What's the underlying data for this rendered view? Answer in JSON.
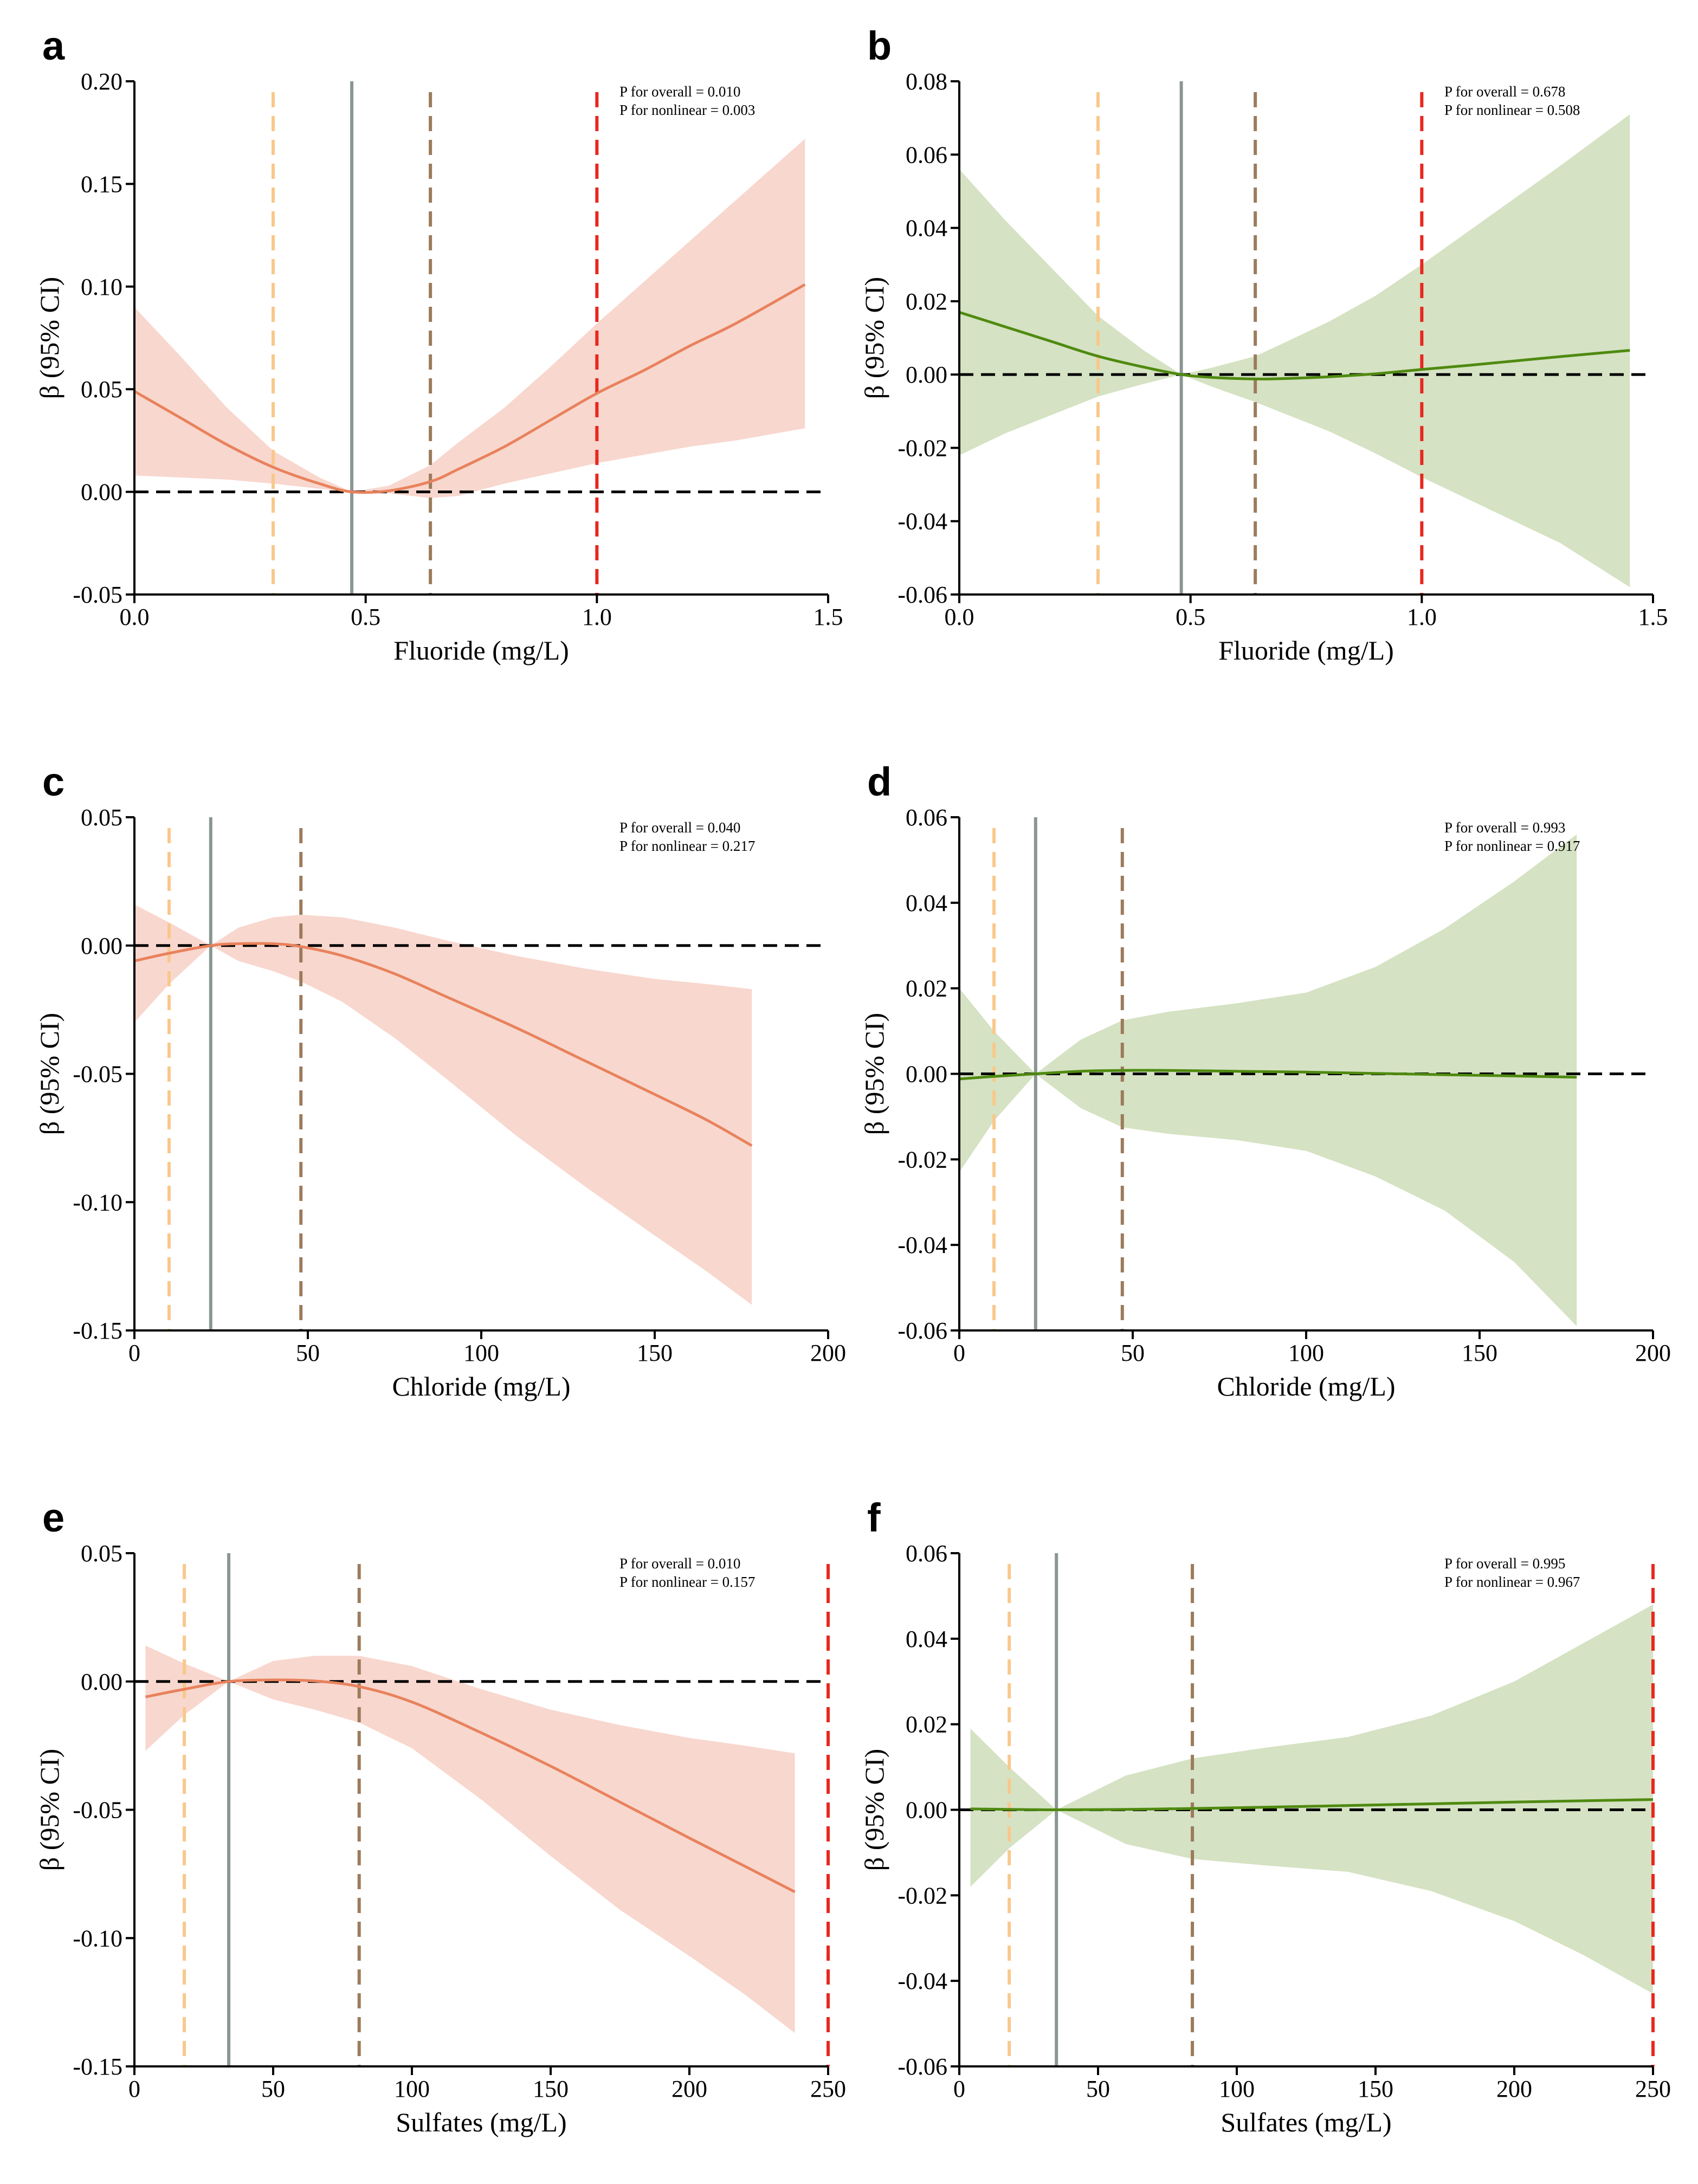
{
  "chart_data": [
    {
      "panel": "a",
      "type": "line",
      "color": "#E8825C",
      "band_color": "#F8D7CE",
      "xlabel": "Fluoride (mg/L)",
      "ylabel": "β (95% CI)",
      "xlim": [
        0,
        1.5
      ],
      "ylim": [
        -0.05,
        0.2
      ],
      "xticks": [
        0,
        0.5,
        1.0,
        1.5
      ],
      "xtick_labels": [
        "0.0",
        "0.5",
        "1.0",
        "1.5"
      ],
      "yticks": [
        -0.05,
        0,
        0.05,
        0.1,
        0.15,
        0.2
      ],
      "ytick_labels": [
        "-0.05",
        "0.00",
        "0.05",
        "0.10",
        "0.15",
        "0.20"
      ],
      "p_overall": "P for overall = 0.010",
      "p_nonlinear": "P for nonlinear = 0.003",
      "ref_x": 0.47,
      "vlines": [
        {
          "x": 0.3,
          "color": "#F9C88A"
        },
        {
          "x": 0.64,
          "color": "#9C7B5C"
        },
        {
          "x": 1.0,
          "color": "#E8281E"
        }
      ],
      "x": [
        0.0,
        0.1,
        0.2,
        0.3,
        0.4,
        0.47,
        0.55,
        0.64,
        0.7,
        0.8,
        0.9,
        1.0,
        1.1,
        1.2,
        1.3,
        1.45
      ],
      "y": [
        0.049,
        0.036,
        0.023,
        0.012,
        0.004,
        0.0,
        0.0005,
        0.005,
        0.011,
        0.022,
        0.035,
        0.048,
        0.059,
        0.071,
        0.082,
        0.101
      ],
      "lower": [
        0.008,
        0.007,
        0.006,
        0.004,
        0.0015,
        0.0,
        -0.0007,
        -0.003,
        -0.002,
        0.004,
        0.009,
        0.014,
        0.018,
        0.022,
        0.025,
        0.031
      ],
      "upper": [
        0.09,
        0.066,
        0.041,
        0.02,
        0.007,
        0.0,
        0.003,
        0.013,
        0.024,
        0.041,
        0.061,
        0.082,
        0.102,
        0.122,
        0.142,
        0.172
      ]
    },
    {
      "panel": "b",
      "type": "line",
      "color": "#4F8A10",
      "band_color": "#D5E2C3",
      "xlabel": "Fluoride (mg/L)",
      "ylabel": "β (95% CI)",
      "xlim": [
        0,
        1.5
      ],
      "ylim": [
        -0.06,
        0.08
      ],
      "xticks": [
        0,
        0.5,
        1.0,
        1.5
      ],
      "xtick_labels": [
        "0.0",
        "0.5",
        "1.0",
        "1.5"
      ],
      "yticks": [
        -0.06,
        -0.04,
        -0.02,
        0,
        0.02,
        0.04,
        0.06,
        0.08
      ],
      "ytick_labels": [
        "-0.06",
        "-0.04",
        "-0.02",
        "0.00",
        "0.02",
        "0.04",
        "0.06",
        "0.08"
      ],
      "p_overall": "P for overall = 0.678",
      "p_nonlinear": "P for nonlinear = 0.508",
      "ref_x": 0.48,
      "vlines": [
        {
          "x": 0.3,
          "color": "#F9C88A"
        },
        {
          "x": 0.64,
          "color": "#9C7B5C"
        },
        {
          "x": 1.0,
          "color": "#E8281E"
        }
      ],
      "x": [
        0.0,
        0.1,
        0.2,
        0.3,
        0.4,
        0.48,
        0.55,
        0.64,
        0.7,
        0.8,
        0.9,
        1.0,
        1.1,
        1.2,
        1.3,
        1.45
      ],
      "y": [
        0.017,
        0.013,
        0.009,
        0.005,
        0.002,
        0.0,
        -0.0008,
        -0.0012,
        -0.0011,
        -0.0006,
        0.0002,
        0.0014,
        0.0025,
        0.0037,
        0.0049,
        0.0066
      ],
      "lower": [
        -0.022,
        -0.016,
        -0.011,
        -0.006,
        -0.0025,
        0.0,
        -0.0035,
        -0.0075,
        -0.0105,
        -0.0155,
        -0.0215,
        -0.028,
        -0.034,
        -0.04,
        -0.046,
        -0.058
      ],
      "upper": [
        0.056,
        0.042,
        0.029,
        0.016,
        0.0065,
        0.0,
        0.002,
        0.005,
        0.0085,
        0.0145,
        0.0215,
        0.03,
        0.039,
        0.048,
        0.057,
        0.071
      ]
    },
    {
      "panel": "c",
      "type": "line",
      "color": "#E8825C",
      "band_color": "#F8D7CE",
      "xlabel": "Chloride (mg/L)",
      "ylabel": "β (95% CI)",
      "xlim": [
        0,
        200
      ],
      "ylim": [
        -0.15,
        0.05
      ],
      "xticks": [
        0,
        50,
        100,
        150,
        200
      ],
      "xtick_labels": [
        "0",
        "50",
        "100",
        "150",
        "200"
      ],
      "yticks": [
        -0.15,
        -0.1,
        -0.05,
        0,
        0.05
      ],
      "ytick_labels": [
        "-0.15",
        "-0.10",
        "-0.05",
        "0.00",
        "0.05"
      ],
      "p_overall": "P for overall = 0.040",
      "p_nonlinear": "P for nonlinear = 0.217",
      "ref_x": 22,
      "vlines": [
        {
          "x": 10,
          "color": "#F9C88A"
        },
        {
          "x": 48,
          "color": "#9C7B5C"
        }
      ],
      "x": [
        0,
        10,
        22,
        30,
        40,
        48,
        60,
        75,
        90,
        110,
        130,
        150,
        165,
        178
      ],
      "y": [
        -0.006,
        -0.003,
        0.0,
        0.0007,
        0.0007,
        -0.0004,
        -0.004,
        -0.011,
        -0.02,
        -0.032,
        -0.045,
        -0.058,
        -0.068,
        -0.078
      ],
      "lower": [
        -0.03,
        -0.015,
        0.0,
        -0.006,
        -0.01,
        -0.014,
        -0.022,
        -0.036,
        -0.052,
        -0.074,
        -0.094,
        -0.113,
        -0.127,
        -0.14
      ],
      "upper": [
        0.016,
        0.009,
        0.0,
        0.007,
        0.011,
        0.012,
        0.011,
        0.007,
        0.002,
        -0.004,
        -0.009,
        -0.013,
        -0.015,
        -0.017
      ]
    },
    {
      "panel": "d",
      "type": "line",
      "color": "#4F8A10",
      "band_color": "#D5E2C3",
      "xlabel": "Chloride (mg/L)",
      "ylabel": "β (95% CI)",
      "xlim": [
        0,
        200
      ],
      "ylim": [
        -0.06,
        0.06
      ],
      "xticks": [
        0,
        50,
        100,
        150,
        200
      ],
      "xtick_labels": [
        "0",
        "50",
        "100",
        "150",
        "200"
      ],
      "yticks": [
        -0.06,
        -0.04,
        -0.02,
        0,
        0.02,
        0.04,
        0.06
      ],
      "ytick_labels": [
        "-0.06",
        "-0.04",
        "-0.02",
        "0.00",
        "0.02",
        "0.04",
        "0.06"
      ],
      "p_overall": "P for overall = 0.993",
      "p_nonlinear": "P for nonlinear = 0.917",
      "ref_x": 22,
      "vlines": [
        {
          "x": 10,
          "color": "#F9C88A"
        },
        {
          "x": 47,
          "color": "#9C7B5C"
        }
      ],
      "x": [
        0,
        10,
        22,
        35,
        47,
        60,
        80,
        100,
        120,
        140,
        160,
        178
      ],
      "y": [
        -0.0012,
        -0.0006,
        0.0,
        0.0006,
        0.0008,
        0.0008,
        0.0006,
        0.0004,
        0.0001,
        -0.0002,
        -0.0005,
        -0.0008
      ],
      "lower": [
        -0.023,
        -0.011,
        0.0,
        -0.008,
        -0.0125,
        -0.014,
        -0.0155,
        -0.018,
        -0.024,
        -0.032,
        -0.044,
        -0.059
      ],
      "upper": [
        0.02,
        0.01,
        0.0,
        0.008,
        0.0125,
        0.0145,
        0.0165,
        0.019,
        0.025,
        0.034,
        0.045,
        0.056
      ]
    },
    {
      "panel": "e",
      "type": "line",
      "color": "#E8825C",
      "band_color": "#F8D7CE",
      "xlabel": "Sulfates (mg/L)",
      "ylabel": "β (95% CI)",
      "xlim": [
        0,
        250
      ],
      "ylim": [
        -0.15,
        0.05
      ],
      "xticks": [
        0,
        50,
        100,
        150,
        200,
        250
      ],
      "xtick_labels": [
        "0",
        "50",
        "100",
        "150",
        "200",
        "250"
      ],
      "yticks": [
        -0.15,
        -0.1,
        -0.05,
        0,
        0.05
      ],
      "ytick_labels": [
        "-0.15",
        "-0.10",
        "-0.05",
        "0.00",
        "0.05"
      ],
      "p_overall": "P for overall = 0.010",
      "p_nonlinear": "P for nonlinear = 0.157",
      "ref_x": 34,
      "vlines": [
        {
          "x": 18,
          "color": "#F9C88A"
        },
        {
          "x": 81,
          "color": "#9C7B5C"
        },
        {
          "x": 250,
          "color": "#E8281E"
        }
      ],
      "x": [
        4,
        18,
        34,
        50,
        65,
        81,
        100,
        125,
        150,
        175,
        200,
        220,
        238
      ],
      "y": [
        -0.006,
        -0.003,
        0.0,
        0.0006,
        0.0002,
        -0.002,
        -0.008,
        -0.02,
        -0.033,
        -0.047,
        -0.061,
        -0.072,
        -0.082
      ],
      "lower": [
        -0.027,
        -0.013,
        0.0,
        -0.007,
        -0.011,
        -0.016,
        -0.026,
        -0.046,
        -0.068,
        -0.089,
        -0.107,
        -0.122,
        -0.137
      ],
      "upper": [
        0.014,
        0.007,
        0.0,
        0.008,
        0.01,
        0.01,
        0.006,
        -0.003,
        -0.011,
        -0.017,
        -0.022,
        -0.025,
        -0.028
      ]
    },
    {
      "panel": "f",
      "type": "line",
      "color": "#4F8A10",
      "band_color": "#D5E2C3",
      "xlabel": "Sulfates (mg/L)",
      "ylabel": "β (95% CI)",
      "xlim": [
        0,
        250
      ],
      "ylim": [
        -0.06,
        0.06
      ],
      "xticks": [
        0,
        50,
        100,
        150,
        200,
        250
      ],
      "xtick_labels": [
        "0",
        "50",
        "100",
        "150",
        "200",
        "250"
      ],
      "yticks": [
        -0.06,
        -0.04,
        -0.02,
        0,
        0.02,
        0.04,
        0.06
      ],
      "ytick_labels": [
        "-0.06",
        "-0.04",
        "-0.02",
        "0.00",
        "0.02",
        "0.04",
        "0.06"
      ],
      "p_overall": "P for overall = 0.995",
      "p_nonlinear": "P for nonlinear = 0.967",
      "ref_x": 35,
      "vlines": [
        {
          "x": 18,
          "color": "#F9C88A"
        },
        {
          "x": 84,
          "color": "#9C7B5C"
        },
        {
          "x": 250,
          "color": "#E8281E"
        }
      ],
      "x": [
        4,
        18,
        35,
        60,
        84,
        110,
        140,
        170,
        200,
        225,
        250
      ],
      "y": [
        0.0002,
        0.0001,
        0.0,
        0.0001,
        0.0003,
        0.0006,
        0.001,
        0.0014,
        0.0018,
        0.0021,
        0.0024
      ],
      "lower": [
        -0.018,
        -0.009,
        0.0,
        -0.008,
        -0.0115,
        -0.013,
        -0.0145,
        -0.019,
        -0.026,
        -0.034,
        -0.043
      ],
      "upper": [
        0.019,
        0.01,
        0.0,
        0.008,
        0.012,
        0.0145,
        0.017,
        0.022,
        0.03,
        0.039,
        0.048
      ]
    }
  ]
}
